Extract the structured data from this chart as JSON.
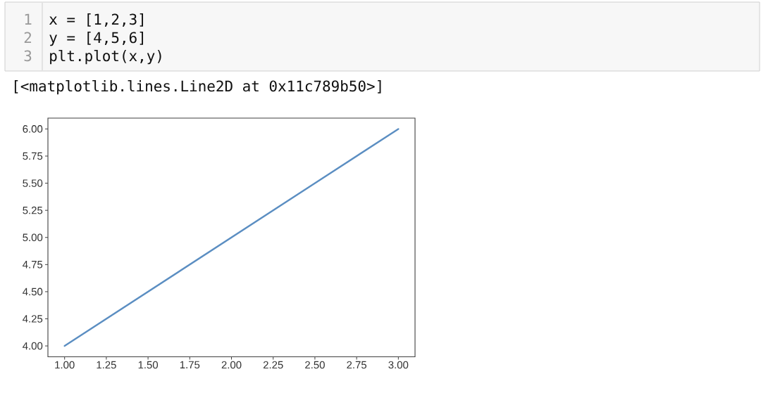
{
  "chart_data": {
    "type": "line",
    "x": [
      1,
      2,
      3
    ],
    "values": [
      4,
      5,
      6
    ],
    "color": "#5b8ec2",
    "xlim": [
      0.9,
      3.1
    ],
    "ylim": [
      3.9,
      6.1
    ],
    "xticks": [
      {
        "value": 1,
        "label": "1.00"
      },
      {
        "value": 1.25,
        "label": "1.25"
      },
      {
        "value": 1.5,
        "label": "1.50"
      },
      {
        "value": 1.75,
        "label": "1.75"
      },
      {
        "value": 2,
        "label": "2.00"
      },
      {
        "value": 2.25,
        "label": "2.25"
      },
      {
        "value": 2.5,
        "label": "2.50"
      },
      {
        "value": 2.75,
        "label": "2.75"
      },
      {
        "value": 3,
        "label": "3.00"
      }
    ],
    "yticks": [
      {
        "value": 4,
        "label": "4.00"
      },
      {
        "value": 4.25,
        "label": "4.25"
      },
      {
        "value": 4.5,
        "label": "4.50"
      },
      {
        "value": 4.75,
        "label": "4.75"
      },
      {
        "value": 5,
        "label": "5.00"
      },
      {
        "value": 5.25,
        "label": "5.25"
      },
      {
        "value": 5.5,
        "label": "5.50"
      },
      {
        "value": 5.75,
        "label": "5.75"
      },
      {
        "value": 6,
        "label": "6.00"
      }
    ],
    "annotations": [
      "1",
      "x = [1,2,3]",
      "2",
      "y = [4,5,6]",
      "3",
      "plt.plot(x,y)",
      "[<matplotlib.lines.Line2D at 0x11c789b50>]"
    ]
  }
}
